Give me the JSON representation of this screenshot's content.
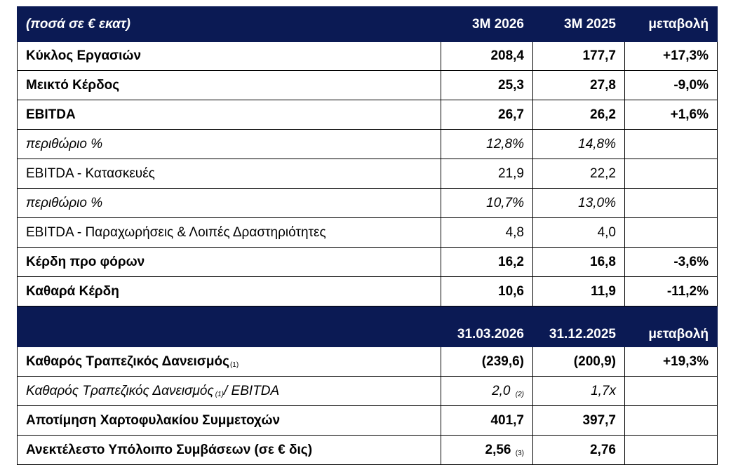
{
  "header1": {
    "title": "(ποσά σε € εκατ)",
    "col1": "3M 2026",
    "col2": "3M 2025",
    "col3": "μεταβολή"
  },
  "rows1": [
    {
      "label": "Κύκλος Εργασιών",
      "v1": "208,4",
      "v2": "177,7",
      "v3": "+17,3%"
    },
    {
      "label": "Μεικτό Κέρδος",
      "v1": "25,3",
      "v2": "27,8",
      "v3": "-9,0%"
    },
    {
      "label": "EBITDA",
      "v1": "26,7",
      "v2": "26,2",
      "v3": "+1,6%"
    },
    {
      "label": "περιθώριο %",
      "v1": "12,8%",
      "v2": "14,8%",
      "v3": ""
    },
    {
      "label": "EBITDA - Κατασκευές",
      "v1": "21,9",
      "v2": "22,2",
      "v3": ""
    },
    {
      "label": "περιθώριο %",
      "v1": "10,7%",
      "v2": "13,0%",
      "v3": ""
    },
    {
      "label": "EBITDA - Παραχωρήσεις & Λοιπές Δραστηριότητες",
      "v1": "4,8",
      "v2": "4,0",
      "v3": ""
    },
    {
      "label": "Κέρδη προ φόρων",
      "v1": "16,2",
      "v2": "16,8",
      "v3": "-3,6%"
    },
    {
      "label": "Καθαρά Κέρδη",
      "v1": "10,6",
      "v2": "11,9",
      "v3": "-11,2%"
    }
  ],
  "header2": {
    "col1": "31.03.2026",
    "col2": "31.12.2025",
    "col3": "μεταβολή"
  },
  "rows2": [
    {
      "label": "Καθαρός Τραπεζικός Δανεισμός",
      "note": "(1)",
      "v1": "(239,6)",
      "v2": "(200,9)",
      "v3": "+19,3%"
    },
    {
      "label_a": "Καθαρός Τραπεζικός Δανεισμός",
      "note": "(1)",
      "label_b": "/ EBITDA",
      "v1": "2,0",
      "v1_note": "(2)",
      "v2": "1,7x",
      "v3": ""
    },
    {
      "label": "Αποτίμηση Χαρτοφυλακίου Συμμετοχών",
      "v1": "401,7",
      "v2": "397,7",
      "v3": ""
    },
    {
      "label": "Ανεκτέλεστο Υπόλοιπο Συμβάσεων (σε € δις)",
      "v1": "2,56",
      "v1_note": "(3)",
      "v2": "2,76",
      "v3": ""
    }
  ]
}
